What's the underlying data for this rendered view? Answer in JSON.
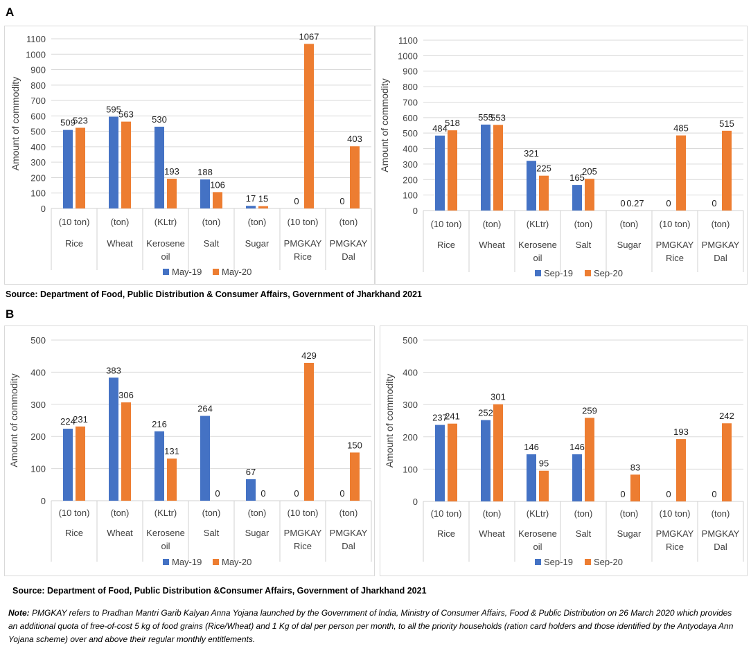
{
  "labels": {
    "panel_a": "A",
    "panel_b": "B"
  },
  "source_a": "Source: Department of Food, Public Distribution & Consumer Affairs, Government of Jharkhand 2021",
  "source_b": "Source: Department of Food, Public Distribution &Consumer Affairs, Government of Jharkhand 2021",
  "note": {
    "label": "Note:",
    "text": "PMGKAY refers to Pradhan Mantri Garib Kalyan Anna Yojana launched by the Government of lndia, Ministry of Consumer Affairs, Food & Public Distribution on 26 March 2020 which provides an additional quota of free-of-cost 5 kg of food grains (Rice/Wheat) and 1 Kg of dal per person per month, to all the priority households (ration card holders and those identified by the Antyodaya Ann Yojana scheme) over and above their regular monthly entitlements."
  },
  "colors": {
    "blue": "#4472C4",
    "orange": "#ED7D31",
    "grid": "#d9d9d9"
  },
  "chart_data": [
    {
      "type": "bar",
      "panel": "A",
      "ylabel": "Amount of commodity",
      "ylim": [
        0,
        1100
      ],
      "yticks": [
        0,
        100,
        200,
        300,
        400,
        500,
        600,
        700,
        800,
        900,
        1000,
        1100
      ],
      "categories": [
        [
          "(10 ton)",
          "Rice"
        ],
        [
          "(ton)",
          "Wheat"
        ],
        [
          "(KLtr)",
          "Kerosene",
          "oil"
        ],
        [
          "(ton)",
          "Salt"
        ],
        [
          "(ton)",
          "Sugar"
        ],
        [
          "(10 ton)",
          "PMGKAY",
          "Rice"
        ],
        [
          "(ton)",
          "PMGKAY",
          "Dal"
        ]
      ],
      "series": [
        {
          "name": "May-19",
          "values": [
            509,
            595,
            530,
            188,
            17,
            0,
            0
          ],
          "labels": [
            "509",
            "595",
            "530",
            "188",
            "17",
            "0",
            "0"
          ]
        },
        {
          "name": "May-20",
          "values": [
            523,
            563,
            193,
            106,
            15,
            1067,
            403
          ],
          "labels": [
            "523",
            "563",
            "193",
            "106",
            "15",
            "1067",
            "403"
          ]
        }
      ],
      "legend": "bottom",
      "grid": true
    },
    {
      "type": "bar",
      "panel": "A",
      "ylabel": "Amount of commodity",
      "ylim": [
        0,
        1100
      ],
      "yticks": [
        0,
        100,
        200,
        300,
        400,
        500,
        600,
        700,
        800,
        900,
        1000,
        1100
      ],
      "categories": [
        [
          "(10 ton)",
          "Rice"
        ],
        [
          "(ton)",
          "Wheat"
        ],
        [
          "(KLtr)",
          "Kerosene",
          "oil"
        ],
        [
          "(ton)",
          "Salt"
        ],
        [
          "(ton)",
          "Sugar"
        ],
        [
          "(10 ton)",
          "PMGKAY",
          "Rice"
        ],
        [
          "(ton)",
          "PMGKAY",
          "Dal"
        ]
      ],
      "series": [
        {
          "name": "Sep-19",
          "values": [
            484,
            555,
            321,
            165,
            0,
            0,
            0
          ],
          "labels": [
            "484",
            "555",
            "321",
            "165",
            "0",
            "0",
            "0"
          ]
        },
        {
          "name": "Sep-20",
          "values": [
            518,
            553,
            225,
            205,
            0.27,
            485,
            515
          ],
          "labels": [
            "518",
            "553",
            "225",
            "205",
            "0.27",
            "485",
            "515"
          ]
        }
      ],
      "legend": "bottom",
      "grid": true
    },
    {
      "type": "bar",
      "panel": "B",
      "ylabel": "Amount of commodity",
      "ylim": [
        0,
        500
      ],
      "yticks": [
        0,
        100,
        200,
        300,
        400,
        500
      ],
      "categories": [
        [
          "(10 ton)",
          "Rice"
        ],
        [
          "(ton)",
          "Wheat"
        ],
        [
          "(KLtr)",
          "Kerosene",
          "oil"
        ],
        [
          "(ton)",
          "Salt"
        ],
        [
          "(ton)",
          "Sugar"
        ],
        [
          "(10 ton)",
          "PMGKAY",
          "Rice"
        ],
        [
          "(ton)",
          "PMGKAY",
          "Dal"
        ]
      ],
      "series": [
        {
          "name": "May-19",
          "values": [
            224,
            383,
            216,
            264,
            67,
            0,
            0
          ],
          "labels": [
            "224",
            "383",
            "216",
            "264",
            "67",
            "0",
            "0"
          ]
        },
        {
          "name": "May-20",
          "values": [
            231,
            306,
            131,
            0,
            0,
            429,
            150
          ],
          "labels": [
            "231",
            "306",
            "131",
            "0",
            "0",
            "429",
            "150"
          ]
        }
      ],
      "legend": "bottom",
      "grid": true
    },
    {
      "type": "bar",
      "panel": "B",
      "ylabel": "Amount of commodity",
      "ylim": [
        0,
        500
      ],
      "yticks": [
        0,
        100,
        200,
        300,
        400,
        500
      ],
      "categories": [
        [
          "(10 ton)",
          "Rice"
        ],
        [
          "(ton)",
          "Wheat"
        ],
        [
          "(KLtr)",
          "Kerosene",
          "oil"
        ],
        [
          "(ton)",
          "Salt"
        ],
        [
          "(ton)",
          "Sugar"
        ],
        [
          "(10 ton)",
          "PMGKAY",
          "Rice"
        ],
        [
          "(ton)",
          "PMGKAY",
          "Dal"
        ]
      ],
      "series": [
        {
          "name": "Sep-19",
          "values": [
            237,
            252,
            146,
            146,
            0,
            0,
            0
          ],
          "labels": [
            "237",
            "252",
            "146",
            "146",
            "0",
            "0",
            "0"
          ]
        },
        {
          "name": "Sep-20",
          "values": [
            241,
            301,
            95,
            259,
            83,
            193,
            242
          ],
          "labels": [
            "241",
            "301",
            "95",
            "259",
            "83",
            "193",
            "242"
          ]
        }
      ],
      "legend": "bottom",
      "grid": true
    }
  ]
}
